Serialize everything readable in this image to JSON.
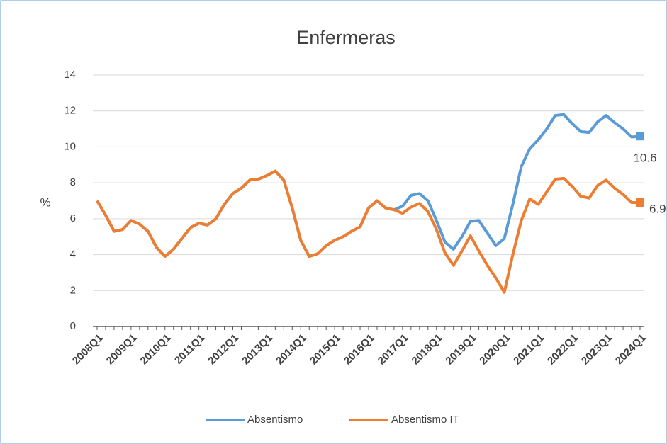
{
  "chart_data": {
    "type": "line",
    "title": "Enfermeras",
    "ylabel": "%",
    "categories": [
      "2008Q1",
      null,
      null,
      null,
      "2009Q1",
      null,
      null,
      null,
      "2010Q1",
      null,
      null,
      null,
      "2011Q1",
      null,
      null,
      null,
      "2012Q1",
      null,
      null,
      null,
      "2013Q1",
      null,
      null,
      null,
      "2014Q1",
      null,
      null,
      null,
      "2015Q1",
      null,
      null,
      null,
      "2016Q1",
      null,
      null,
      null,
      "2017Q1",
      null,
      null,
      null,
      "2018Q1",
      null,
      null,
      null,
      "2019Q1",
      null,
      null,
      null,
      "2020Q1",
      null,
      null,
      null,
      "2021Q1",
      null,
      null,
      null,
      "2022Q1",
      null,
      null,
      null,
      "2023Q1",
      null,
      null,
      null,
      "2024Q1"
    ],
    "series": [
      {
        "name": "Absentismo",
        "color": "#5b9bd5",
        "values": [
          7.0,
          6.2,
          5.3,
          5.4,
          5.9,
          5.7,
          5.3,
          4.4,
          3.9,
          4.3,
          4.9,
          5.5,
          5.75,
          5.65,
          6.0,
          6.8,
          7.4,
          7.7,
          8.15,
          8.2,
          8.4,
          8.65,
          8.15,
          6.6,
          4.8,
          3.9,
          4.05,
          4.5,
          4.8,
          5.0,
          5.3,
          5.55,
          6.6,
          7.0,
          6.6,
          6.5,
          6.7,
          7.3,
          7.4,
          7.0,
          5.9,
          4.7,
          4.3,
          5.0,
          5.85,
          5.9,
          5.2,
          4.5,
          4.9,
          6.8,
          8.9,
          9.9,
          10.4,
          11.0,
          11.75,
          11.8,
          11.3,
          10.85,
          10.8,
          11.4,
          11.75,
          11.35,
          11.0,
          10.55,
          10.6
        ]
      },
      {
        "name": "Absentismo IT",
        "color": "#ed7d31",
        "values": [
          7.0,
          6.2,
          5.3,
          5.4,
          5.9,
          5.7,
          5.3,
          4.4,
          3.9,
          4.3,
          4.9,
          5.5,
          5.75,
          5.65,
          6.0,
          6.8,
          7.4,
          7.7,
          8.15,
          8.2,
          8.4,
          8.65,
          8.15,
          6.6,
          4.8,
          3.9,
          4.05,
          4.5,
          4.8,
          5.0,
          5.3,
          5.55,
          6.6,
          7.0,
          6.6,
          6.5,
          6.3,
          6.65,
          6.85,
          6.4,
          5.4,
          4.1,
          3.4,
          4.2,
          5.05,
          4.2,
          3.4,
          2.7,
          1.9,
          4.0,
          5.9,
          7.1,
          6.8,
          7.5,
          8.2,
          8.25,
          7.8,
          7.25,
          7.15,
          7.85,
          8.15,
          7.7,
          7.35,
          6.9,
          6.9
        ]
      }
    ],
    "ylim": [
      0,
      14
    ],
    "yticks": [
      0,
      2,
      4,
      6,
      8,
      10,
      12,
      14
    ],
    "grid": true,
    "legend": "bottom"
  }
}
